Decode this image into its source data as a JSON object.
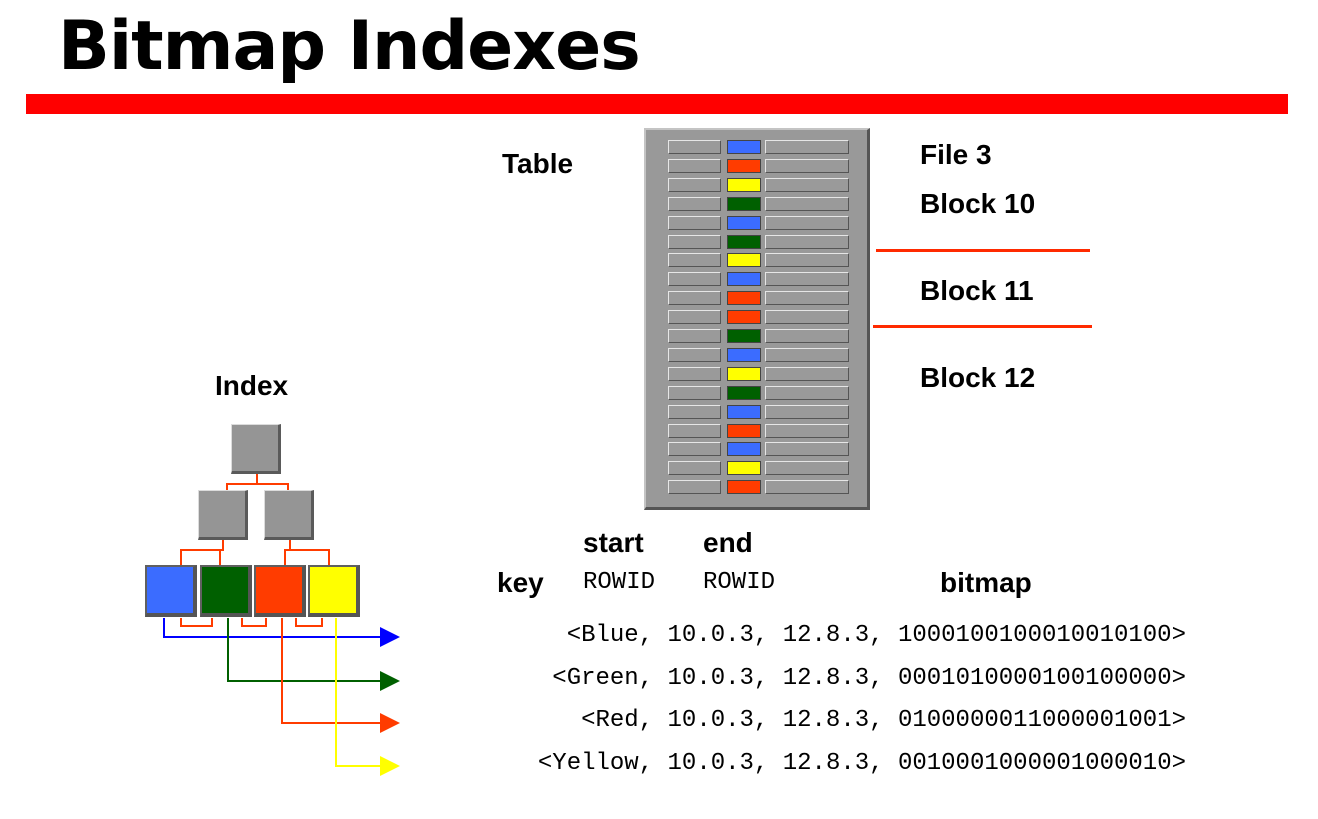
{
  "title": "Bitmap Indexes",
  "table": {
    "label": "Table",
    "file_label": "File 3",
    "blocks": [
      "Block 10",
      "Block 11",
      "Block 12"
    ],
    "row_colors": [
      "blue",
      "red",
      "yellow",
      "green",
      "blue",
      "green",
      "yellow",
      "blue",
      "red",
      "red",
      "green",
      "blue",
      "yellow",
      "green",
      "blue",
      "red",
      "blue",
      "yellow",
      "red"
    ]
  },
  "index": {
    "label": "Index",
    "keys": [
      "blue",
      "green",
      "red",
      "yellow"
    ]
  },
  "headers": {
    "start": "start",
    "end": "end",
    "key": "key",
    "rowid_start": "ROWID",
    "rowid_end": "ROWID",
    "bitmap": "bitmap"
  },
  "entries": [
    {
      "text": "<Blue, 10.0.3, 12.8.3, 1000100100010010100>",
      "color": "blue"
    },
    {
      "text": "<Green, 10.0.3, 12.8.3, 0001010000100100000>",
      "color": "green"
    },
    {
      "text": "<Red, 10.0.3, 12.8.3, 0100000011000001001>",
      "color": "red"
    },
    {
      "text": "<Yellow, 10.0.3, 12.8.3, 0010001000001000010>",
      "color": "yellow"
    }
  ],
  "colors": {
    "blue": "#3b6cff",
    "green": "#006000",
    "red": "#ff3c00",
    "yellow": "#ffff00",
    "title_bar": "#ff0000"
  }
}
